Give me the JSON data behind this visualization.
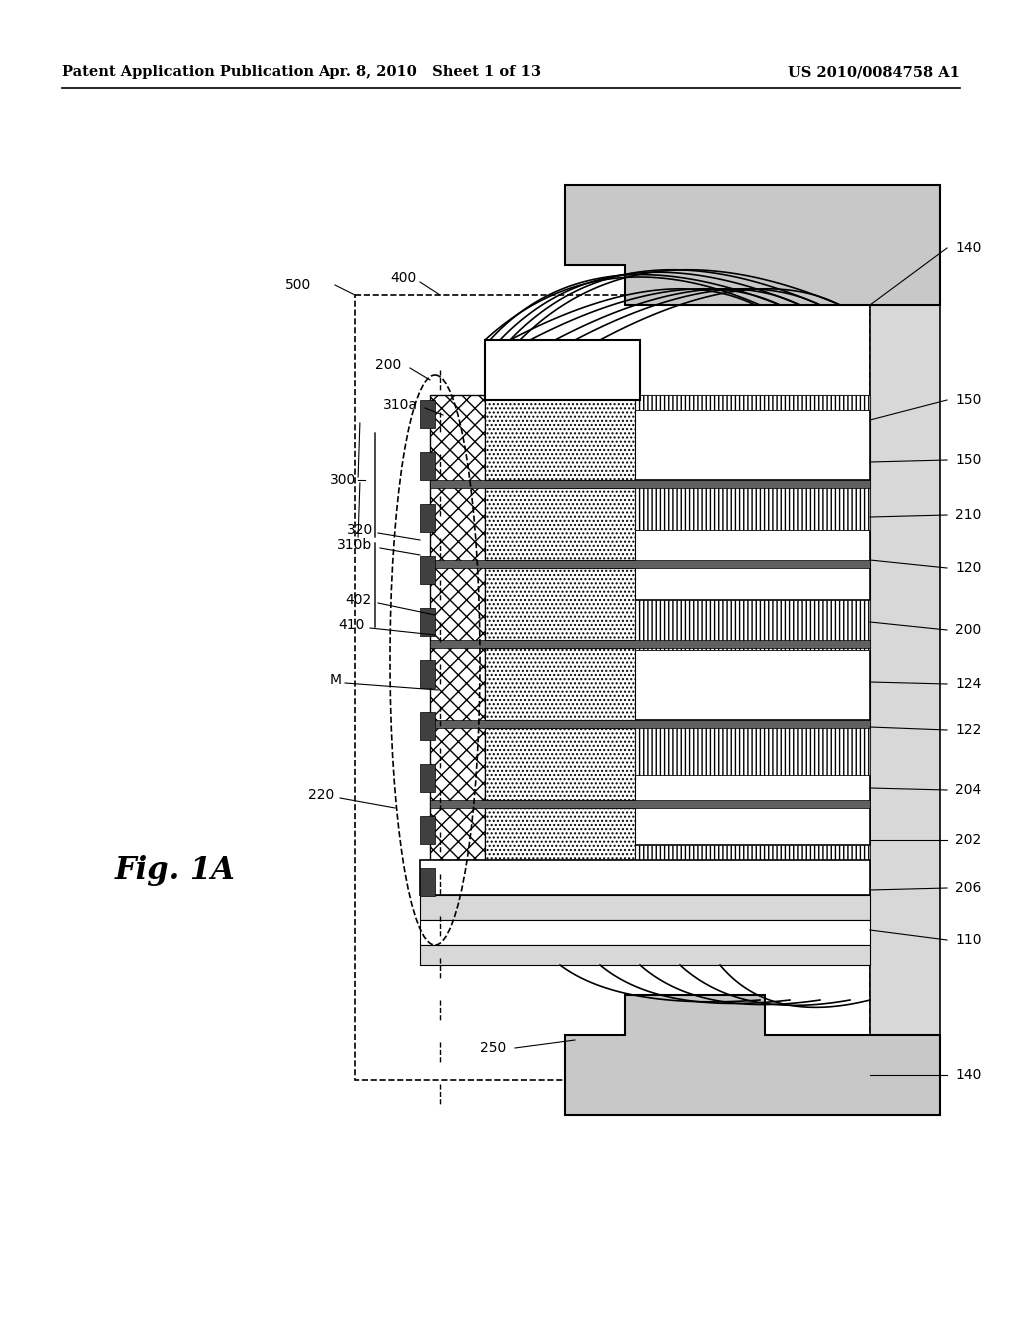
{
  "header_left": "Patent Application Publication",
  "header_mid": "Apr. 8, 2010   Sheet 1 of 13",
  "header_right": "US 2010/0084758 A1",
  "fig_label": "Fig. 1A",
  "bg": "#ffffff",
  "gray_fill": "#c8c8c8",
  "gray_light": "#d8d8d8",
  "gray_medium": "#a8a8a8",
  "gray_dark": "#888888",
  "hatch_cross": "xx",
  "hatch_dot": "....",
  "hatch_line": "||||"
}
